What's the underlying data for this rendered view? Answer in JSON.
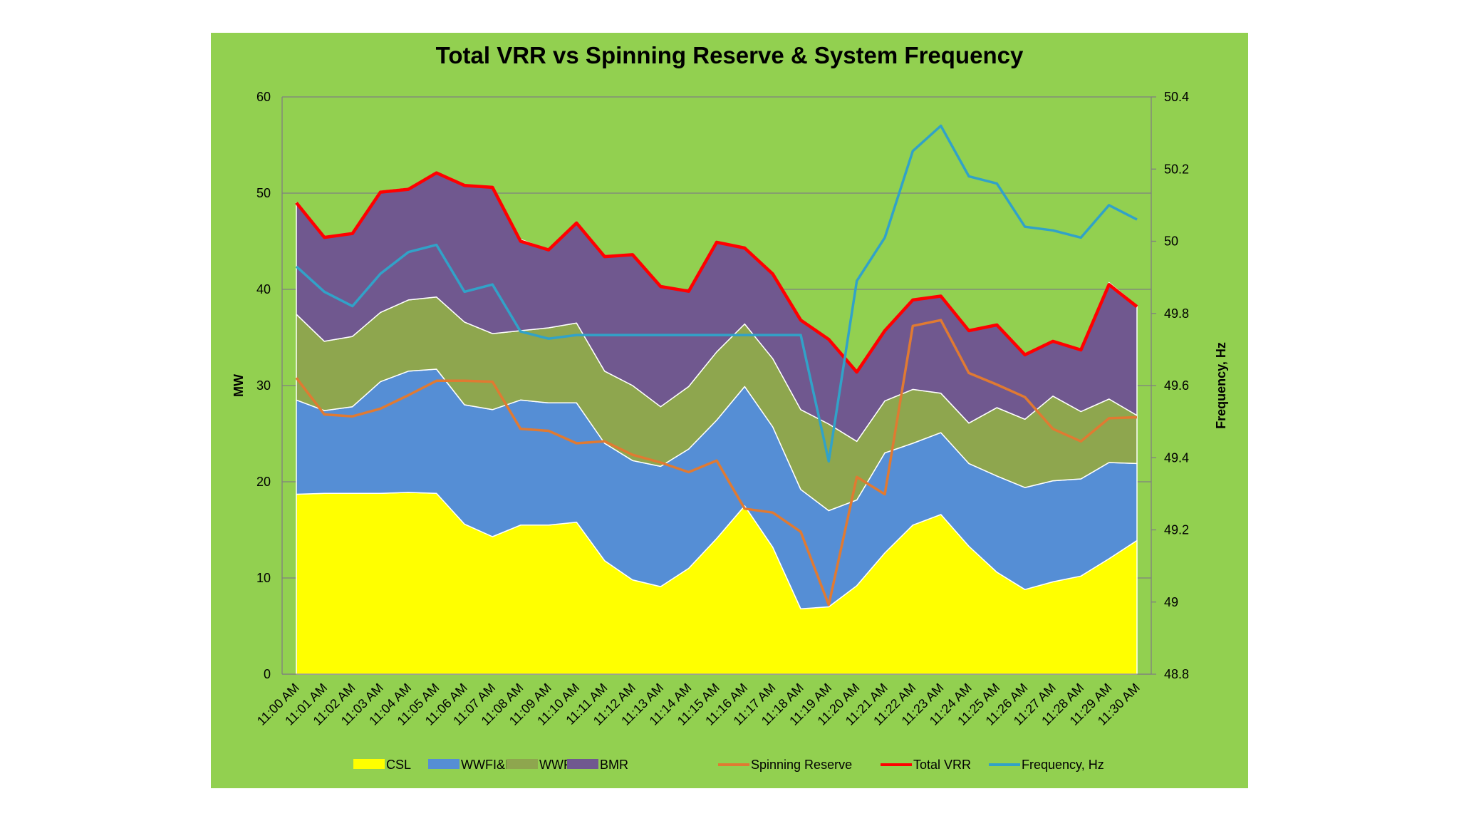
{
  "chart_data": {
    "type": "area",
    "title": "Total VRR vs Spinning Reserve & System Frequency",
    "ylabel": "MW",
    "y2label": "Frequency, Hz",
    "ylim": [
      0,
      60
    ],
    "y2lim": [
      48.8,
      50.4
    ],
    "yticks": [
      "0",
      "10",
      "20",
      "30",
      "40",
      "50",
      "60"
    ],
    "y2ticks": [
      "48.8",
      "49",
      "49.2",
      "49.4",
      "49.6",
      "49.8",
      "50",
      "50.2",
      "50.4"
    ],
    "categories": [
      "11:00 AM",
      "11:01 AM",
      "11:02 AM",
      "11:03 AM",
      "11:04 AM",
      "11:05 AM",
      "11:06 AM",
      "11:07 AM",
      "11:08 AM",
      "11:09 AM",
      "11:10 AM",
      "11:11 AM",
      "11:12 AM",
      "11:13 AM",
      "11:14 AM",
      "11:15 AM",
      "11:16 AM",
      "11:17 AM",
      "11:18 AM",
      "11:19 AM",
      "11:20 AM",
      "11:21 AM",
      "11:22 AM",
      "11:23 AM",
      "11:24 AM",
      "11:25 AM",
      "11:26 AM",
      "11:27 AM",
      "11:28 AM",
      "11:29 AM",
      "11:30 AM"
    ],
    "stacked_area_series": [
      {
        "name": "CSL",
        "color": "#ffff00",
        "values": [
          18.7,
          18.8,
          18.8,
          18.8,
          18.9,
          18.8,
          15.6,
          14.3,
          15.5,
          15.5,
          15.8,
          11.8,
          9.8,
          9.1,
          11,
          14.1,
          17.5,
          13.2,
          6.8,
          7,
          9.2,
          12.6,
          15.5,
          16.6,
          13.3,
          10.6,
          8.8,
          9.6,
          10.2,
          12,
          13.9
        ]
      },
      {
        "name": "WWFI&II",
        "color": "#558ed5",
        "values": [
          9.8,
          8.6,
          9,
          11.6,
          12.6,
          12.9,
          12.4,
          13.2,
          13,
          12.7,
          12.4,
          12.2,
          12.4,
          12.5,
          12.4,
          12.3,
          12.4,
          12.5,
          12.4,
          10,
          8.9,
          10.4,
          8.5,
          8.5,
          8.6,
          10,
          10.6,
          10.5,
          10.1,
          10,
          8
        ]
      },
      {
        "name": "WWFIII",
        "color": "#8ea64e",
        "values": [
          8.9,
          7.2,
          7.3,
          7.2,
          7.4,
          7.5,
          8.6,
          7.9,
          7.2,
          7.8,
          8.3,
          7.5,
          7.8,
          6.2,
          6.5,
          7.1,
          6.5,
          7.1,
          8.3,
          9,
          6.1,
          5.4,
          5.6,
          4.1,
          4.2,
          7.1,
          7.1,
          8.8,
          7,
          6.6,
          5
        ]
      },
      {
        "name": "BMR",
        "color": "#70588f",
        "values": [
          11.6,
          10.8,
          10.7,
          12.6,
          11.6,
          12.9,
          14.2,
          15.2,
          9.5,
          8.1,
          10.4,
          11.9,
          13.6,
          12.5,
          9.9,
          11.4,
          7.9,
          8.9,
          9.3,
          8.8,
          7.2,
          7.3,
          9.4,
          10.1,
          9.6,
          8.7,
          6.6,
          5.8,
          6.4,
          12.1,
          11.4
        ]
      }
    ],
    "line_series": [
      {
        "name": "Spinning Reserve",
        "axis": "y",
        "color": "#e07a32",
        "values": [
          30.8,
          27,
          26.8,
          27.6,
          29,
          30.5,
          30.5,
          30.4,
          25.5,
          25.3,
          24,
          24.2,
          22.8,
          22,
          21,
          22.2,
          17.2,
          16.8,
          14.8,
          7.2,
          20.5,
          18.7,
          36.2,
          36.8,
          31.3,
          30.1,
          28.8,
          25.5,
          24.2,
          26.6,
          26.7
        ]
      },
      {
        "name": "Total VRR",
        "axis": "y",
        "color": "#ff0000",
        "values": [
          49,
          45.4,
          45.8,
          50.1,
          50.4,
          52.1,
          50.8,
          50.6,
          45,
          44.1,
          46.9,
          43.4,
          43.6,
          40.3,
          39.8,
          44.9,
          44.3,
          41.6,
          36.8,
          34.8,
          31.4,
          35.7,
          38.9,
          39.3,
          35.7,
          36.3,
          33.2,
          34.6,
          33.7,
          40.5,
          38.2
        ]
      },
      {
        "name": "Frequency, Hz",
        "axis": "y2",
        "color": "#31a2c8",
        "values": [
          49.93,
          49.86,
          49.82,
          49.91,
          49.97,
          49.99,
          49.86,
          49.88,
          49.75,
          49.73,
          49.74,
          49.74,
          49.74,
          49.74,
          49.74,
          49.74,
          49.74,
          49.74,
          49.74,
          49.39,
          49.89,
          50.01,
          50.25,
          50.32,
          50.18,
          50.16,
          50.04,
          50.03,
          50.01,
          50.1,
          50.06
        ]
      }
    ],
    "legend": [
      "CSL",
      "WWFI&II",
      "WWFIII",
      "BMR",
      "Spinning Reserve",
      "Total VRR",
      "Frequency, Hz"
    ],
    "legend_position": "bottom",
    "grid": "horizontal"
  }
}
